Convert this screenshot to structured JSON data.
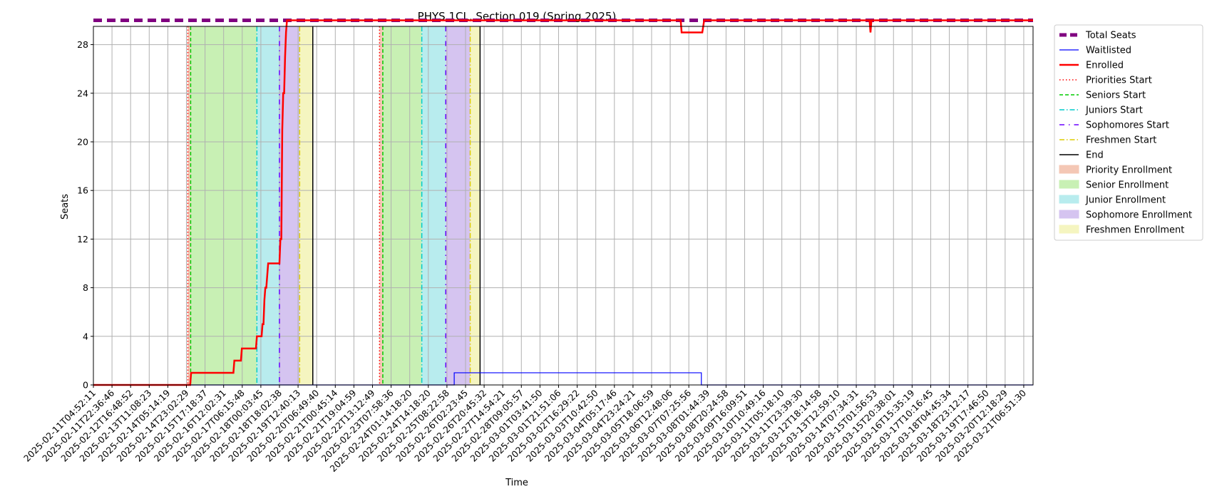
{
  "chart_data": {
    "type": "line",
    "title": "PHYS 1CL, Section 019 (Spring 2025)",
    "xlabel": "Time",
    "ylabel": "Seats",
    "ylim": [
      0,
      29.5
    ],
    "xlim": [
      0,
      1000
    ],
    "yticks": [
      0,
      4,
      8,
      12,
      16,
      20,
      24,
      28
    ],
    "grid": true,
    "legend_position": "outside-right",
    "x_tick_labels": [
      "2025-02-11T04:52:11",
      "2025-02-11T22:36:46",
      "2025-02-12T16:48:52",
      "2025-02-13T11:08:23",
      "2025-02-14T05:14:19",
      "2025-02-14T23:02:29",
      "2025-02-15T17:18:37",
      "2025-02-16T12:02:31",
      "2025-02-17T06:15:48",
      "2025-02-18T00:03:45",
      "2025-02-18T18:02:38",
      "2025-02-19T12:40:13",
      "2025-02-20T06:49:40",
      "2025-02-21T00:45:14",
      "2025-02-21T19:04:59",
      "2025-02-22T13:12:49",
      "2025-02-23T07:58:36",
      "2025-02-24T01:14:18:20",
      "2025-02-24T14:18:20",
      "2025-02-25T08:22:58",
      "2025-02-26T02:23:45",
      "2025-02-26T20:45:32",
      "2025-02-27T14:54:21",
      "2025-02-28T09:05:57",
      "2025-03-01T03:41:50",
      "2025-03-01T21:51:06",
      "2025-03-02T16:29:22",
      "2025-03-03T10:42:50",
      "2025-03-04T05:17:46",
      "2025-03-04T23:24:21",
      "2025-03-05T18:06:59",
      "2025-03-06T12:48:06",
      "2025-03-07T07:25:56",
      "2025-03-08T01:44:39",
      "2025-03-08T20:24:58",
      "2025-03-09T16:09:51",
      "2025-03-10T10:49:16",
      "2025-03-11T05:18:10",
      "2025-03-11T23:39:30",
      "2025-03-12T18:14:58",
      "2025-03-13T12:59:10",
      "2025-03-14T07:34:31",
      "2025-03-15T01:56:53",
      "2025-03-15T20:38:01",
      "2025-03-16T15:35:19",
      "2025-03-17T10:16:45",
      "2025-03-18T04:45:34",
      "2025-03-18T23:12:17",
      "2025-03-19T17:46:50",
      "2025-03-20T12:18:29",
      "2025-03-21T06:51:30",
      "2025-03-22T01:19:48"
    ],
    "series": [
      {
        "name": "Total Seats",
        "color": "#800080",
        "style": "dashed-thick",
        "points": [
          [
            0,
            30
          ],
          [
            1000,
            30
          ]
        ]
      },
      {
        "name": "Waitlisted",
        "color": "#0000ff",
        "style": "solid-thin",
        "points": [
          [
            0,
            0
          ],
          [
            384,
            0
          ],
          [
            384,
            1
          ],
          [
            647,
            1
          ],
          [
            647,
            0
          ],
          [
            1000,
            0
          ]
        ]
      },
      {
        "name": "Enrolled",
        "color": "#ff0000",
        "style": "solid-thick",
        "points": [
          [
            0,
            0
          ],
          [
            103,
            0
          ],
          [
            104,
            1
          ],
          [
            149,
            1
          ],
          [
            150,
            2
          ],
          [
            157,
            2
          ],
          [
            158,
            3
          ],
          [
            173,
            3
          ],
          [
            174,
            4
          ],
          [
            179,
            4
          ],
          [
            180,
            5
          ],
          [
            181,
            5
          ],
          [
            182,
            7
          ],
          [
            183,
            8
          ],
          [
            184,
            8
          ],
          [
            185,
            9
          ],
          [
            186,
            10
          ],
          [
            198,
            10
          ],
          [
            199,
            12
          ],
          [
            200,
            12
          ],
          [
            201,
            21
          ],
          [
            202,
            24
          ],
          [
            203,
            24
          ],
          [
            204,
            27
          ],
          [
            205,
            29
          ],
          [
            206,
            30
          ],
          [
            625,
            30
          ],
          [
            626,
            29
          ],
          [
            648,
            29
          ],
          [
            650,
            30
          ],
          [
            826,
            30
          ],
          [
            827,
            29
          ],
          [
            828,
            30
          ],
          [
            1000,
            30
          ]
        ]
      }
    ],
    "markers": [
      {
        "name": "Priorities Start",
        "color": "#ff0000",
        "style": "dotted",
        "x": [
          100.5,
          304.5
        ]
      },
      {
        "name": "Seniors Start",
        "color": "#00cc00",
        "style": "dashed",
        "x": [
          103.5,
          308
        ]
      },
      {
        "name": "Juniors Start",
        "color": "#00cccc",
        "style": "dashdot",
        "x": [
          174,
          349.5
        ]
      },
      {
        "name": "Sophomores Start",
        "color": "#6a00ff",
        "style": "dashdot-loose",
        "x": [
          198,
          375
        ]
      },
      {
        "name": "Freshmen Start",
        "color": "#ddcc00",
        "style": "dashdot",
        "x": [
          219.5,
          401
        ]
      },
      {
        "name": "End",
        "color": "#000000",
        "style": "solid",
        "x": [
          233.5,
          411.5
        ]
      }
    ],
    "regions": [
      {
        "name": "Priority Enrollment",
        "color": "#f4c7b5",
        "spans": [
          [
            100.5,
            103.5
          ],
          [
            304.5,
            308
          ]
        ]
      },
      {
        "name": "Senior Enrollment",
        "color": "#c8f0b4",
        "spans": [
          [
            103.5,
            174
          ],
          [
            308,
            349.5
          ]
        ]
      },
      {
        "name": "Junior Enrollment",
        "color": "#b8ecee",
        "spans": [
          [
            174,
            198
          ],
          [
            349.5,
            375
          ]
        ]
      },
      {
        "name": "Sophomore Enrollment",
        "color": "#d5c4f0",
        "spans": [
          [
            198,
            219.5
          ],
          [
            375,
            401
          ]
        ]
      },
      {
        "name": "Freshmen Enrollment",
        "color": "#f5f5c0",
        "spans": [
          [
            219.5,
            233.5
          ],
          [
            401,
            411.5
          ]
        ]
      }
    ],
    "legend": [
      {
        "label": "Total Seats",
        "kind": "line",
        "color": "#800080",
        "style": "dashed-thick"
      },
      {
        "label": "Waitlisted",
        "kind": "line",
        "color": "#0000ff",
        "style": "solid-thin"
      },
      {
        "label": "Enrolled",
        "kind": "line",
        "color": "#ff0000",
        "style": "solid-thick"
      },
      {
        "label": "Priorities Start",
        "kind": "line",
        "color": "#ff0000",
        "style": "dotted"
      },
      {
        "label": "Seniors Start",
        "kind": "line",
        "color": "#00cc00",
        "style": "dashed"
      },
      {
        "label": "Juniors Start",
        "kind": "line",
        "color": "#00cccc",
        "style": "dashdot"
      },
      {
        "label": "Sophomores Start",
        "kind": "line",
        "color": "#6a00ff",
        "style": "dashdot-loose"
      },
      {
        "label": "Freshmen Start",
        "kind": "line",
        "color": "#ddcc00",
        "style": "dashdot"
      },
      {
        "label": "End",
        "kind": "line",
        "color": "#000000",
        "style": "solid"
      },
      {
        "label": "Priority Enrollment",
        "kind": "patch",
        "color": "#f4c7b5"
      },
      {
        "label": "Senior Enrollment",
        "kind": "patch",
        "color": "#c8f0b4"
      },
      {
        "label": "Junior Enrollment",
        "kind": "patch",
        "color": "#b8ecee"
      },
      {
        "label": "Sophomore Enrollment",
        "kind": "patch",
        "color": "#d5c4f0"
      },
      {
        "label": "Freshmen Enrollment",
        "kind": "patch",
        "color": "#f5f5c0"
      }
    ]
  }
}
